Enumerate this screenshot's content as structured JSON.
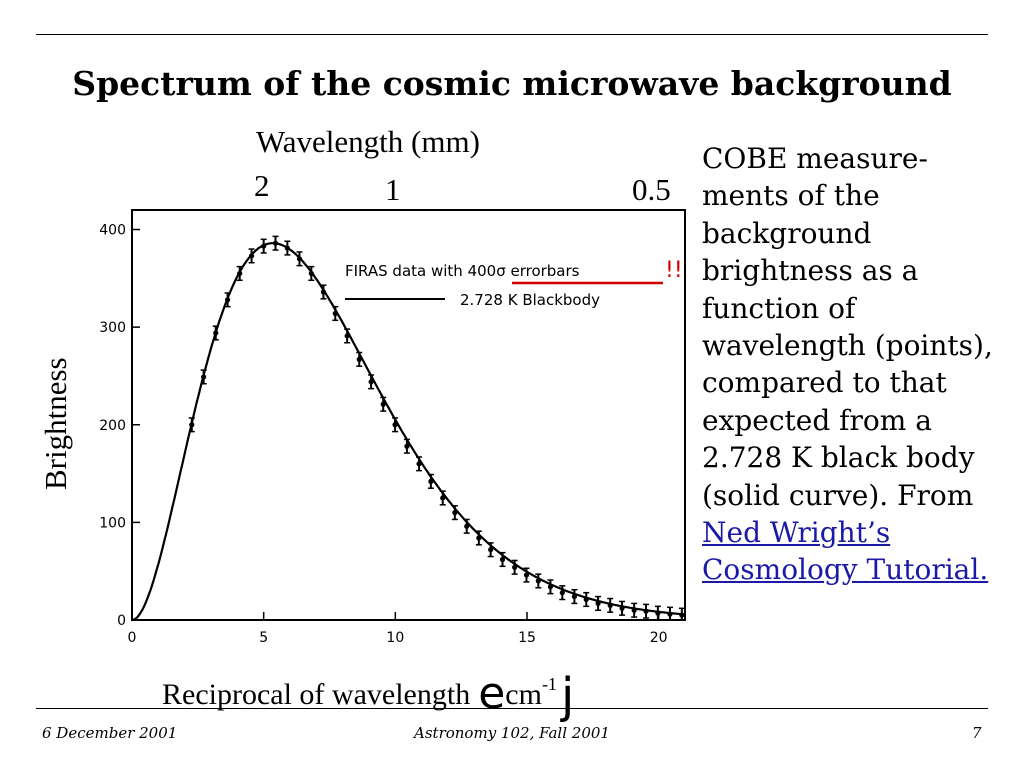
{
  "slide": {
    "title": "Spectrum of the cosmic microwave background",
    "footer_left": "6 December 2001",
    "footer_center": "Astronomy 102, Fall 2001",
    "footer_right": "7"
  },
  "chart_data": {
    "type": "scatter",
    "title": "",
    "xlabel": "Reciprocal of wavelength",
    "xlabel_unit_prefix": "e",
    "xlabel_unit_body": "cm",
    "xlabel_unit_exp": "-1",
    "xlabel_unit_suffix": "j",
    "ylabel": "Brightness",
    "top_axis_label": "Wavelength (mm)",
    "top_axis_ticks": [
      {
        "label": "2",
        "wavelength_mm": 2
      },
      {
        "label": "1",
        "wavelength_mm": 1
      },
      {
        "label": "0.5",
        "wavelength_mm": 0.5
      }
    ],
    "xlim": [
      0,
      21
    ],
    "ylim": [
      0,
      420
    ],
    "xticks": [
      0,
      5,
      10,
      15,
      20
    ],
    "yticks": [
      0,
      100,
      200,
      300,
      400
    ],
    "grid": false,
    "legend_position": "top-right",
    "annotation": "!!",
    "series": [
      {
        "name": "FIRAS data with 400σ errorbars",
        "kind": "points",
        "errorbar": 7,
        "x": [
          2.27,
          2.72,
          3.18,
          3.63,
          4.09,
          4.54,
          5.0,
          5.45,
          5.9,
          6.36,
          6.81,
          7.27,
          7.72,
          8.17,
          8.63,
          9.08,
          9.54,
          9.99,
          10.44,
          10.9,
          11.35,
          11.8,
          12.26,
          12.71,
          13.17,
          13.62,
          14.07,
          14.53,
          14.98,
          15.43,
          15.89,
          16.34,
          16.8,
          17.25,
          17.7,
          18.16,
          18.61,
          19.07,
          19.52,
          19.97,
          20.43,
          20.88
        ],
        "y": [
          200,
          249,
          294,
          328,
          355,
          373,
          383,
          386,
          381,
          370,
          355,
          336,
          314,
          291,
          267,
          244,
          221,
          200,
          178,
          160,
          142,
          125,
          110,
          96,
          84,
          72,
          62,
          54,
          46,
          40,
          34,
          28,
          24,
          21,
          17,
          15,
          12,
          10,
          9,
          7,
          6,
          5
        ]
      },
      {
        "name": "2.728 K Blackbody",
        "kind": "line",
        "temperature_K": 2.728
      }
    ]
  },
  "description": {
    "text": "COBE measure­ments of the background brightness as a function of wavelength (points), compared to that expected from a 2.728 K black body (solid curve). From",
    "link": "Ned Wright’s Cosmology Tutorial."
  }
}
